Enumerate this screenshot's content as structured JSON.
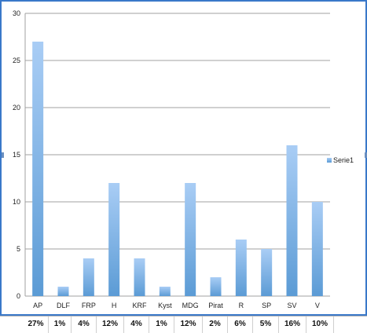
{
  "chart_data": {
    "type": "bar",
    "categories": [
      "AP",
      "DLF",
      "FRP",
      "H",
      "KRF",
      "Kyst",
      "MDG",
      "Pirat",
      "R",
      "SP",
      "SV",
      "V"
    ],
    "series": [
      {
        "name": "Serie1",
        "values": [
          27,
          1,
          4,
          12,
          4,
          1,
          12,
          2,
          6,
          5,
          16,
          10
        ]
      }
    ],
    "ylim": [
      0,
      30
    ],
    "yticks": [
      "0",
      "5",
      "10",
      "15",
      "20",
      "25",
      "30"
    ],
    "grid": true,
    "legend_position": "right",
    "bar_color": "#5b9bd5",
    "bar_color_light": "#a9cdf5"
  },
  "percent_row": [
    "27%",
    "1%",
    "4%",
    "12%",
    "4%",
    "1%",
    "12%",
    "2%",
    "6%",
    "5%",
    "16%",
    "10%"
  ],
  "colors": {
    "frame_border": "#3a78c9",
    "gridline": "#a0a0a0"
  }
}
